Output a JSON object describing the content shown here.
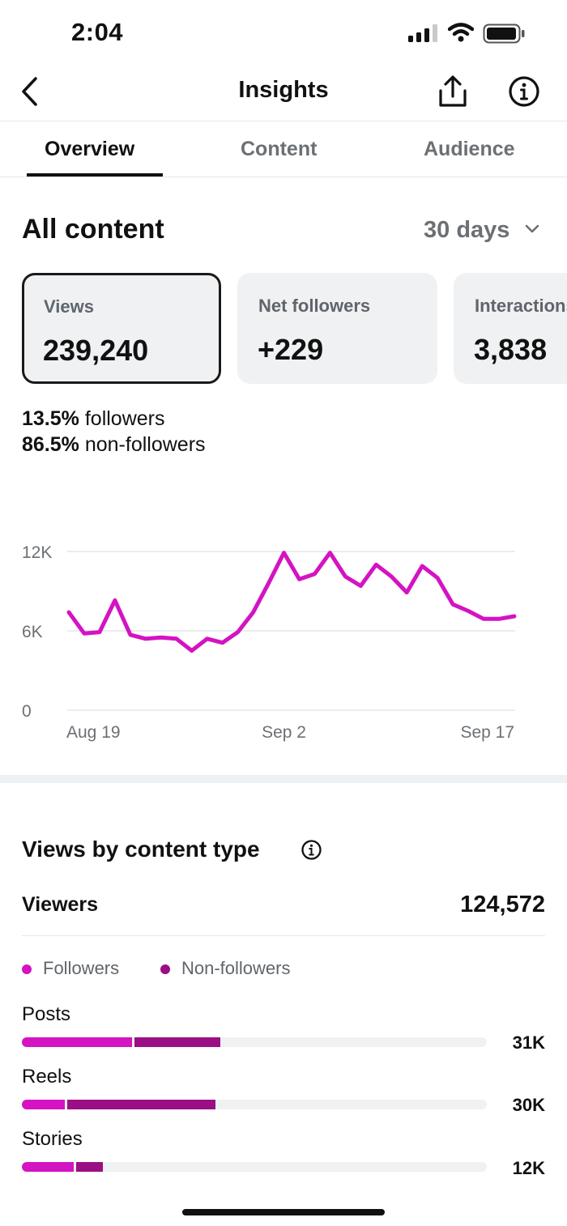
{
  "status_bar": {
    "time": "2:04"
  },
  "header": {
    "title": "Insights",
    "icons": [
      "back-chevron-icon",
      "share-icon",
      "info-icon"
    ]
  },
  "tabs": [
    {
      "label": "Overview",
      "active": true
    },
    {
      "label": "Content",
      "active": false
    },
    {
      "label": "Audience",
      "active": false
    }
  ],
  "overview": {
    "section_title": "All content",
    "range_label": "30 days",
    "metrics": [
      {
        "label": "Views",
        "value": "239,240",
        "selected": true
      },
      {
        "label": "Net followers",
        "value": "+229",
        "selected": false
      },
      {
        "label": "Interactions",
        "value": "3,838",
        "selected": false
      }
    ],
    "split": [
      {
        "pct": "13.5%",
        "label": "followers"
      },
      {
        "pct": "86.5%",
        "label": "non-followers"
      }
    ]
  },
  "chart_data": {
    "type": "line",
    "x_tick_labels": [
      "Aug 19",
      "Sep 2",
      "Sep 17"
    ],
    "y_tick_labels": [
      "0",
      "6K",
      "12K"
    ],
    "ylim": [
      0,
      12000
    ],
    "grid": true,
    "color": "#d413c2",
    "values": [
      7400,
      5800,
      5900,
      8300,
      5700,
      5400,
      5500,
      5400,
      4500,
      5400,
      5100,
      5900,
      7400,
      9600,
      11900,
      9900,
      10300,
      11900,
      10100,
      9400,
      11000,
      10100,
      8900,
      10900,
      10000,
      8000,
      7500,
      6900,
      6900,
      7100
    ]
  },
  "content_type": {
    "title": "Views by content type",
    "viewers_label": "Viewers",
    "viewers_value": "124,572",
    "legend": [
      {
        "label": "Followers",
        "color": "#d413c2"
      },
      {
        "label": "Non-followers",
        "color": "#9a0f84"
      }
    ],
    "rows": [
      {
        "label": "Posts",
        "value": "31K",
        "followers_frac": 0.237,
        "nonfollowers_frac": 0.185
      },
      {
        "label": "Reels",
        "value": "30K",
        "followers_frac": 0.092,
        "nonfollowers_frac": 0.32
      },
      {
        "label": "Stories",
        "value": "12K",
        "followers_frac": 0.112,
        "nonfollowers_frac": 0.057
      }
    ]
  }
}
